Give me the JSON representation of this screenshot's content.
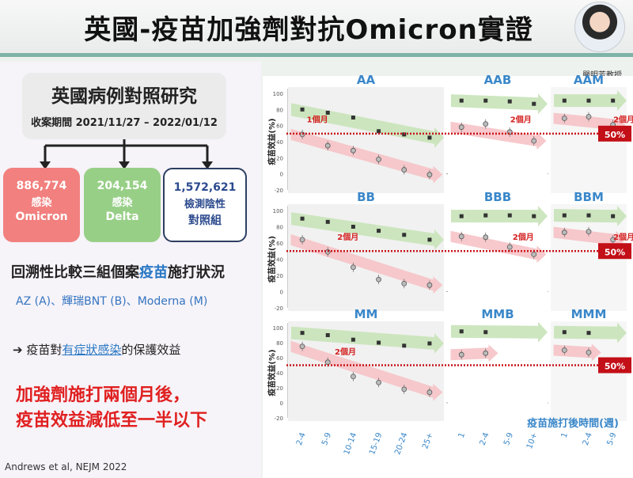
{
  "header": {
    "title": "英國-疫苗加強劑對抗Omicron實證",
    "presenter_caption": "嚴明芳教授"
  },
  "study": {
    "title": "英國病例對照研究",
    "period": "收案期間 2021/11/27 – 2022/01/12"
  },
  "cohorts": [
    {
      "number": "886,774",
      "line1": "感染",
      "line2": "Omicron"
    },
    {
      "number": "204,154",
      "line1": "感染",
      "line2": "Delta"
    },
    {
      "number": "1,572,621",
      "line1": "檢測陰性",
      "line2": "對照組"
    }
  ],
  "retro": {
    "pre": "回溯性比較三組個案",
    "highlight": "疫苗",
    "post": "施打狀況"
  },
  "brands": "AZ (A)、輝瑞BNT (B)、Moderna (M)",
  "effect_line": {
    "arrow": "➔",
    "pre": "疫苗對",
    "underlined": "有症狀感染",
    "post": "的保護效益"
  },
  "conclusion": {
    "line1": "加強劑施打兩個月後，",
    "line2": "疫苗效益減低至一半以下"
  },
  "citation": "Andrews et al, NEJM 2022",
  "colors": {
    "red": "#e02020",
    "blue": "#3a87c9",
    "green_band": "#c8e3b8",
    "pink_band": "#f6c3c6"
  },
  "chart_data": {
    "type": "scatter",
    "ylabel": "疫苗效益(%)",
    "xlabel": "疫苗施打後時間(週)",
    "threshold_label": "50%",
    "threshold": 50,
    "ylim": [
      -20,
      100
    ],
    "y_ticks": [
      "-20",
      "0",
      "20",
      "40",
      "60",
      "80",
      "100"
    ],
    "x_ticks_main": [
      "2-4",
      "5-9",
      "10-14",
      "15-19",
      "20-24",
      "25+"
    ],
    "x_ticks_booster": [
      "1",
      "2-4",
      "5-9",
      "10+"
    ],
    "x_ticks_booster_mm": [
      "1",
      "2-4",
      "5-9"
    ],
    "two_month_label": "2個月",
    "one_month_label": "1個月",
    "panels": [
      {
        "name": "AA",
        "kind": "main",
        "delta": [
          80,
          76,
          70,
          53,
          49,
          45
        ],
        "omicron": [
          49,
          35,
          29,
          18,
          5,
          -1
        ],
        "label": "1個月",
        "mark_x": 0.3
      },
      {
        "name": "AAB",
        "kind": "booster",
        "delta": [
          91,
          91,
          90,
          87
        ],
        "omicron": [
          58,
          62,
          52,
          41
        ],
        "label": "2個月",
        "mark_x": 1.6
      },
      {
        "name": "AAM",
        "kind": "booster3",
        "delta": [
          91,
          91,
          91
        ],
        "omicron": [
          69,
          71,
          61
        ],
        "label": "2個月",
        "mark_x": 1.6
      },
      {
        "name": "BB",
        "kind": "main",
        "delta": [
          90,
          86,
          80,
          75,
          70,
          64
        ],
        "omicron": [
          64,
          49,
          30,
          15,
          10,
          8
        ],
        "label": "2個月",
        "mark_x": 1.5
      },
      {
        "name": "BBB",
        "kind": "booster",
        "delta": [
          93,
          94,
          94,
          93
        ],
        "omicron": [
          68,
          67,
          55,
          46
        ],
        "label": "2個月",
        "mark_x": 1.7
      },
      {
        "name": "BBM",
        "kind": "booster3",
        "delta": [
          94,
          94,
          93
        ],
        "omicron": [
          73,
          74,
          64
        ],
        "label": "2個月",
        "mark_x": 1.6
      },
      {
        "name": "MM",
        "kind": "main",
        "delta": [
          93,
          90,
          84,
          80,
          76,
          79
        ],
        "omicron": [
          75,
          54,
          35,
          27,
          18,
          14
        ],
        "label": "2個月",
        "mark_x": 1.4
      },
      {
        "name": "MMB",
        "kind": "booster",
        "delta": [
          95,
          94
        ],
        "omicron": [
          64,
          66
        ],
        "label": "",
        "mark_x": 0
      },
      {
        "name": "MMM",
        "kind": "booster3",
        "delta": [
          94,
          93
        ],
        "omicron": [
          70,
          67
        ],
        "label": "",
        "mark_x": 0
      }
    ]
  }
}
